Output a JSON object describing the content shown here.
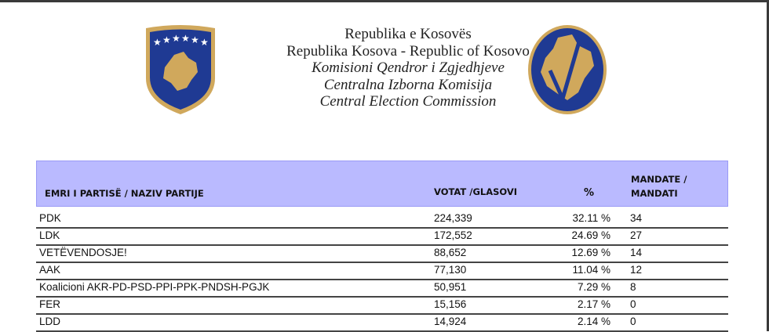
{
  "header": {
    "lines": [
      "Republika e Kosovës",
      "Republika Kosova - Republic of Kosovo",
      "Komisioni Qendror i Zgjedhjeve",
      "Centralna Izborna Komisija",
      "Central Election Commission"
    ]
  },
  "colors": {
    "header_bg": "#babaff",
    "emblem_blue": "#1f3a93",
    "emblem_gold": "#d0a85c"
  },
  "table": {
    "columns": {
      "name": "EMRI I PARTISË / NAZIV PARTIJE",
      "votes": "VOTAT /GLASOVI",
      "percent": "%",
      "seats_line1": "MANDATE  /",
      "seats_line2": "MANDATI"
    },
    "rows": [
      {
        "name": "PDK",
        "votes": "224,339",
        "percent": "32.11 %",
        "seats": "34"
      },
      {
        "name": "LDK",
        "votes": "172,552",
        "percent": "24.69 %",
        "seats": "27"
      },
      {
        "name": "VETËVENDOSJE!",
        "votes": "88,652",
        "percent": "12.69 %",
        "seats": "14"
      },
      {
        "name": "AAK",
        "votes": "77,130",
        "percent": "11.04 %",
        "seats": "12"
      },
      {
        "name": "Koalicioni AKR-PD-PSD-PPI-PPK-PNDSH-PGJK",
        "votes": "50,951",
        "percent": "7.29 %",
        "seats": "8"
      },
      {
        "name": "FER",
        "votes": "15,156",
        "percent": "2.17 %",
        "seats": "0"
      },
      {
        "name": "LDD",
        "votes": "14,924",
        "percent": "2.14 %",
        "seats": "0"
      }
    ]
  }
}
